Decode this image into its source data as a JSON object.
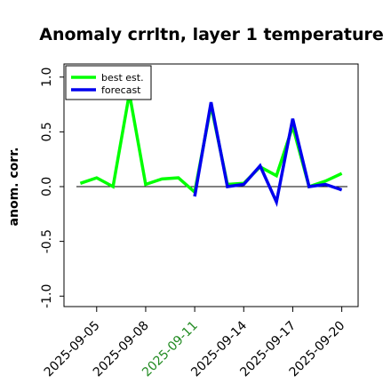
{
  "chart_data": {
    "type": "line",
    "title": "Anomaly crrltn, layer 1 temperature",
    "xlabel": "",
    "ylabel": "anom. corr.",
    "ylim": [
      -1.0,
      1.0
    ],
    "yticks": [
      "-1.0",
      "-0.5",
      "0.0",
      "0.5",
      "1.0"
    ],
    "xlim": [
      "2025-09-03",
      "2025-09-21"
    ],
    "xticks": [
      {
        "label": "2025-09-05",
        "date": "2025-09-05",
        "color": "#000000"
      },
      {
        "label": "2025-09-08",
        "date": "2025-09-08",
        "color": "#000000"
      },
      {
        "label": "2025-09-11",
        "date": "2025-09-11",
        "color": "#228b22"
      },
      {
        "label": "2025-09-14",
        "date": "2025-09-14",
        "color": "#000000"
      },
      {
        "label": "2025-09-17",
        "date": "2025-09-17",
        "color": "#000000"
      },
      {
        "label": "2025-09-20",
        "date": "2025-09-20",
        "color": "#000000"
      }
    ],
    "grid": false,
    "zero_line": true,
    "legend_position": "top-left",
    "series": [
      {
        "name": "best est.",
        "color": "#00ff00",
        "x": [
          "2025-09-04",
          "2025-09-05",
          "2025-09-06",
          "2025-09-07",
          "2025-09-08",
          "2025-09-09",
          "2025-09-10",
          "2025-09-11"
        ],
        "y": [
          0.03,
          0.08,
          0.0,
          0.85,
          0.02,
          0.07,
          0.08,
          -0.05
        ]
      },
      {
        "name": "forecast",
        "color": "#0000ee",
        "x": [
          "2025-09-11",
          "2025-09-12",
          "2025-09-13",
          "2025-09-14",
          "2025-09-15",
          "2025-09-16",
          "2025-09-17",
          "2025-09-18",
          "2025-09-19",
          "2025-09-20"
        ],
        "y": [
          -0.09,
          0.77,
          0.0,
          0.02,
          0.19,
          -0.14,
          0.62,
          0.0,
          0.02,
          -0.03
        ]
      },
      {
        "name": "",
        "color": "#00ff00",
        "x": [
          "2025-09-11",
          "2025-09-12",
          "2025-09-13",
          "2025-09-14",
          "2025-09-15",
          "2025-09-16",
          "2025-09-17",
          "2025-09-18",
          "2025-09-19",
          "2025-09-20"
        ],
        "y": [
          -0.05,
          0.74,
          0.02,
          0.03,
          0.18,
          0.1,
          0.55,
          0.0,
          0.05,
          0.12
        ]
      }
    ],
    "legend": [
      "best est.",
      "forecast"
    ]
  }
}
